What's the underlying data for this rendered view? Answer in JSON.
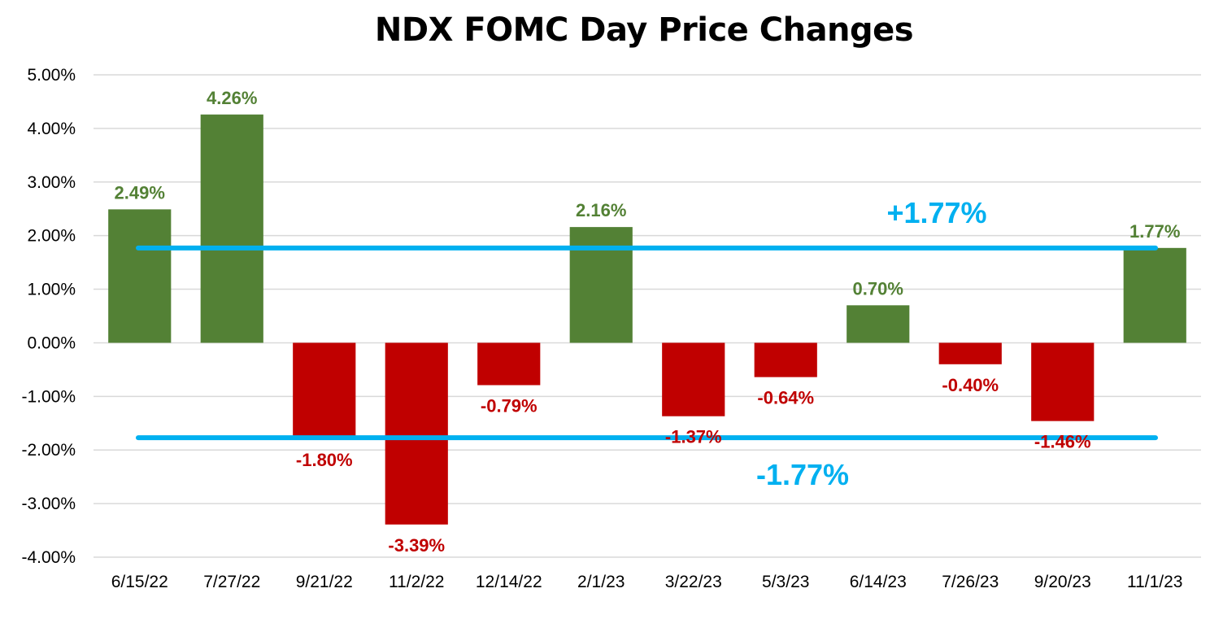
{
  "chart_data": {
    "type": "bar",
    "title": "NDX FOMC Day Price Changes",
    "xlabel": "",
    "ylabel": "",
    "ylim": [
      -4,
      5
    ],
    "yticks": [
      5,
      4,
      3,
      2,
      1,
      0,
      -1,
      -2,
      -3,
      -4
    ],
    "ytick_labels": [
      "5.00%",
      "4.00%",
      "3.00%",
      "2.00%",
      "1.00%",
      "0.00%",
      "-1.00%",
      "-2.00%",
      "-3.00%",
      "-4.00%"
    ],
    "grid": true,
    "legend": "none",
    "categories": [
      "6/15/22",
      "7/27/22",
      "9/21/22",
      "11/2/22",
      "12/14/22",
      "2/1/23",
      "3/22/23",
      "5/3/23",
      "6/14/23",
      "7/26/23",
      "9/20/23",
      "11/1/23"
    ],
    "values": [
      2.49,
      4.26,
      -1.8,
      -3.39,
      -0.79,
      2.16,
      -1.37,
      -0.64,
      0.7,
      -0.4,
      -1.46,
      1.77
    ],
    "data_labels": [
      "2.49%",
      "4.26%",
      "-1.80%",
      "-3.39%",
      "-0.79%",
      "2.16%",
      "-1.37%",
      "-0.64%",
      "0.70%",
      "-0.40%",
      "-1.46%",
      "1.77%"
    ],
    "colors": {
      "positive": "#538135",
      "negative": "#C00000",
      "reference": "#00B0F0",
      "grid": "#D9D9D9"
    },
    "reference_lines": [
      {
        "value": 1.77,
        "label": "+1.77%"
      },
      {
        "value": -1.77,
        "label": "-1.77%"
      }
    ]
  }
}
